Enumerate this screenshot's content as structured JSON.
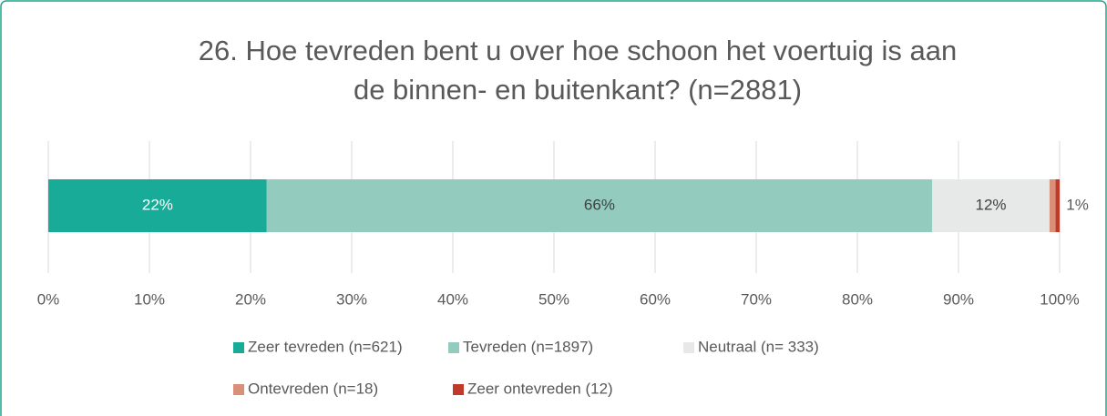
{
  "chart_data": {
    "type": "stacked-bar-horizontal",
    "title": [
      "26. Hoe tevreden bent u over hoe schoon het voertuig is aan",
      "de binnen- en buitenkant? (n=2881)"
    ],
    "series": [
      {
        "name": "Zeer tevreden (n=621)",
        "color": "#17ab98",
        "values": [
          21.6
        ],
        "value_labels": [
          "22%"
        ]
      },
      {
        "name": "Tevreden (n=1897)",
        "color": "#93cbbe",
        "values": [
          65.8
        ],
        "value_labels": [
          "66%"
        ]
      },
      {
        "name": "Neutraal (n= 333)",
        "color": "#e7e8e8",
        "values": [
          11.6
        ],
        "value_labels": [
          "12%"
        ]
      },
      {
        "name": "Ontevreden (n=18)",
        "color": "#d99078",
        "values": [
          0.6
        ],
        "value_labels": [
          "1%"
        ]
      },
      {
        "name": "Zeer ontevreden (12)",
        "color": "#c0392b",
        "values": [
          0.4
        ]
      }
    ],
    "xlim": [
      0,
      100
    ],
    "xticks": [
      {
        "value": 0,
        "label": "0%"
      },
      {
        "value": 10,
        "label": "10%"
      },
      {
        "value": 20,
        "label": "20%"
      },
      {
        "value": 30,
        "label": "30%"
      },
      {
        "value": 40,
        "label": "40%"
      },
      {
        "value": 50,
        "label": "50%"
      },
      {
        "value": 60,
        "label": "60%"
      },
      {
        "value": 70,
        "label": "70%"
      },
      {
        "value": 80,
        "label": "80%"
      },
      {
        "value": 90,
        "label": "90%"
      },
      {
        "value": 100,
        "label": "100%"
      }
    ],
    "grid": true,
    "legend": "bottom"
  }
}
